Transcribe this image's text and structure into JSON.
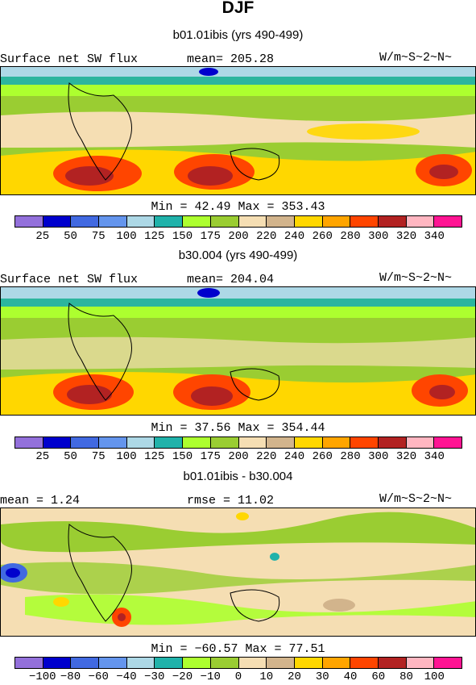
{
  "title": "DJF",
  "panels": [
    {
      "subtitle": "b01.01ibis (yrs 490-499)",
      "left_label": "Surface net SW flux",
      "center_label": "mean= 205.28",
      "units": "W/m~S~2~N~",
      "stats": "Min =  42.49 Max = 353.43",
      "colorbar": {
        "labels": [
          "25",
          "50",
          "75",
          "100",
          "125",
          "150",
          "175",
          "200",
          "220",
          "240",
          "260",
          "280",
          "300",
          "320",
          "340"
        ],
        "colors": [
          "#9370DB",
          "#0000CD",
          "#4169E1",
          "#6495ED",
          "#ADD8E6",
          "#20B2AA",
          "#ADFF2F",
          "#9ACD32",
          "#F5DEB3",
          "#D2B48C",
          "#FFD700",
          "#FFA500",
          "#FF4500",
          "#B22222",
          "#FFB6C1",
          "#FF1493"
        ]
      },
      "map_name": "control-shortwave-map"
    },
    {
      "subtitle": "b30.004 (yrs 490-499)",
      "left_label": "Surface net SW flux",
      "center_label": "mean= 204.04",
      "units": "W/m~S~2~N~",
      "stats": "Min =  37.56 Max = 354.44",
      "colorbar": {
        "labels": [
          "25",
          "50",
          "75",
          "100",
          "125",
          "150",
          "175",
          "200",
          "220",
          "240",
          "260",
          "280",
          "300",
          "320",
          "340"
        ],
        "colors": [
          "#9370DB",
          "#0000CD",
          "#4169E1",
          "#6495ED",
          "#ADD8E6",
          "#20B2AA",
          "#ADFF2F",
          "#9ACD32",
          "#F5DEB3",
          "#D2B48C",
          "#FFD700",
          "#FFA500",
          "#FF4500",
          "#B22222",
          "#FFB6C1",
          "#FF1493"
        ]
      },
      "map_name": "case-shortwave-map"
    },
    {
      "subtitle": "b01.01ibis - b30.004",
      "left_label": "mean =   1.24",
      "center_label": "rmse =  11.02",
      "units": "W/m~S~2~N~",
      "stats": "Min = −60.57 Max =  77.51",
      "colorbar": {
        "labels": [
          "−100",
          "−80",
          "−60",
          "−40",
          "−30",
          "−20",
          "−10",
          "0",
          "10",
          "20",
          "30",
          "40",
          "60",
          "80",
          "100"
        ],
        "colors": [
          "#9370DB",
          "#0000CD",
          "#4169E1",
          "#6495ED",
          "#ADD8E6",
          "#20B2AA",
          "#ADFF2F",
          "#9ACD32",
          "#F5DEB3",
          "#D2B48C",
          "#FFD700",
          "#FFA500",
          "#FF4500",
          "#B22222",
          "#FFB6C1",
          "#FF1493"
        ]
      },
      "map_name": "difference-map"
    }
  ]
}
